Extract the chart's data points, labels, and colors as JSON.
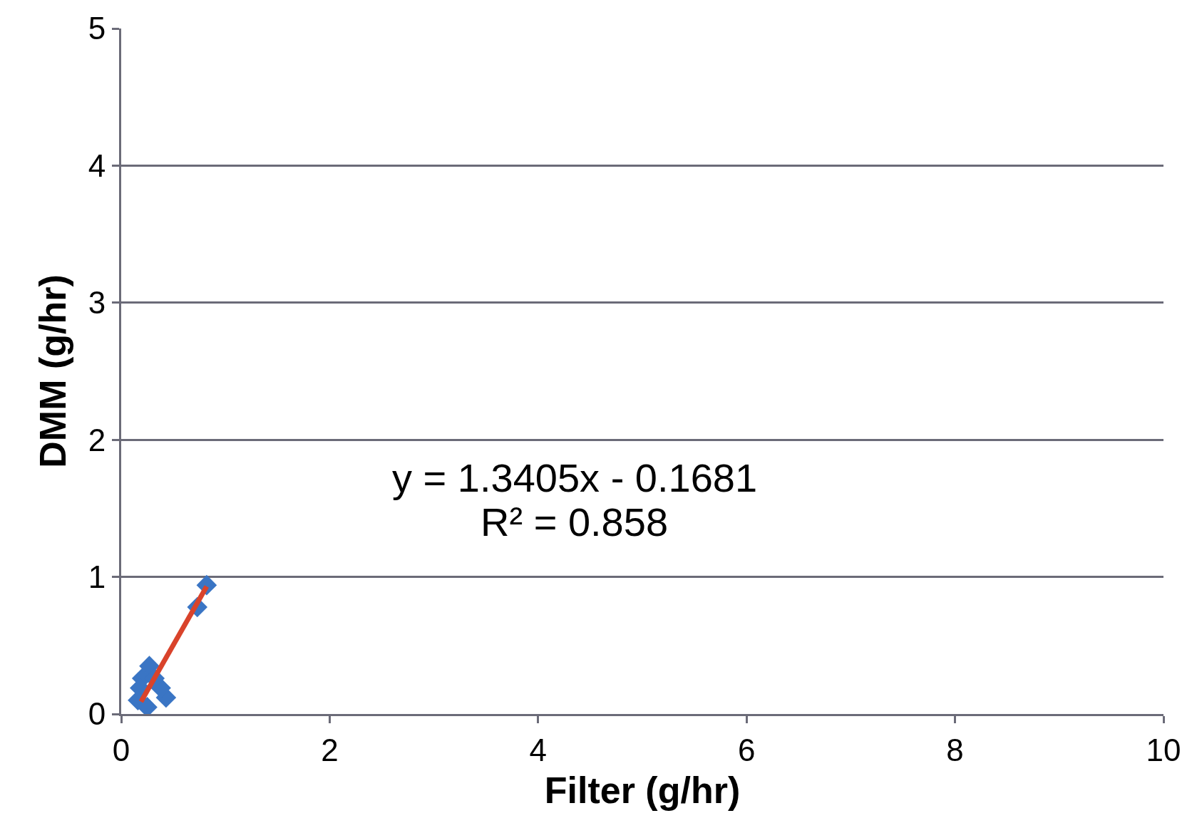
{
  "chart_data": {
    "type": "scatter",
    "xlabel": "Filter (g/hr)",
    "ylabel": "DMM (g/hr)",
    "xlim": [
      0,
      10
    ],
    "xticks": [
      0,
      2,
      4,
      6,
      8,
      10
    ],
    "ylim": [
      0,
      5
    ],
    "yticks": [
      0,
      1,
      2,
      3,
      4,
      5
    ],
    "grid": "y",
    "series": [
      {
        "color": "#3a75c4",
        "marker": "diamond",
        "x": [
          0.82,
          0.73,
          0.27,
          0.2,
          0.18,
          0.16,
          0.25,
          0.43,
          0.38,
          0.32
        ],
        "values": [
          0.94,
          0.78,
          0.35,
          0.26,
          0.19,
          0.1,
          0.05,
          0.12,
          0.19,
          0.26
        ]
      },
      {
        "type": "line",
        "color": "#d9432b",
        "x": [
          0.19,
          0.82
        ],
        "values": [
          0.09,
          0.93
        ]
      }
    ],
    "annotations": [
      "y = 1.3405x - 0.1681",
      "R² = 0.858"
    ]
  }
}
